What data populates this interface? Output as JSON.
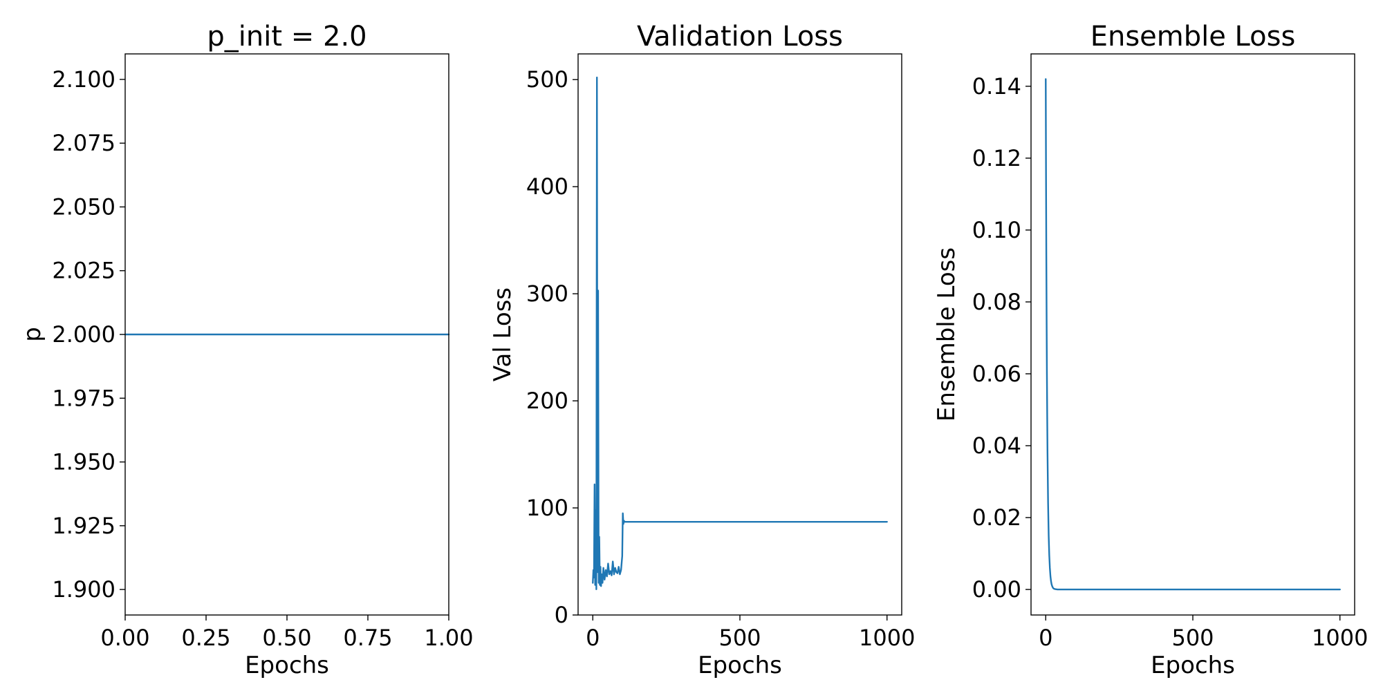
{
  "chart_data": [
    {
      "type": "line",
      "title": "p_init = 2.0",
      "xlabel": "Epochs",
      "ylabel": "p",
      "xlim": [
        0.0,
        1.0
      ],
      "ylim": [
        1.89,
        2.11
      ],
      "xticks": [
        0.0,
        0.25,
        0.5,
        0.75,
        1.0
      ],
      "xtick_labels": [
        "0.00",
        "0.25",
        "0.50",
        "0.75",
        "1.00"
      ],
      "yticks": [
        1.9,
        1.925,
        1.95,
        1.975,
        2.0,
        2.025,
        2.05,
        2.075,
        2.1
      ],
      "ytick_labels": [
        "1.900",
        "1.925",
        "1.950",
        "1.975",
        "2.000",
        "2.025",
        "2.050",
        "2.075",
        "2.100"
      ],
      "grid": false,
      "color": "#1f77b4",
      "series": [
        {
          "x": [
            0.0,
            1.0
          ],
          "y": [
            2.0,
            2.0
          ]
        }
      ]
    },
    {
      "type": "line",
      "title": "Validation Loss",
      "xlabel": "Epochs",
      "ylabel": "Val Loss",
      "xlim": [
        -50,
        1050
      ],
      "ylim": [
        0,
        524
      ],
      "xticks": [
        0,
        500,
        1000
      ],
      "xtick_labels": [
        "0",
        "500",
        "1000"
      ],
      "yticks": [
        0,
        100,
        200,
        300,
        400,
        500
      ],
      "ytick_labels": [
        "0",
        "100",
        "200",
        "300",
        "400",
        "500"
      ],
      "grid": false,
      "color": "#1f77b4",
      "series": [
        {
          "x": [
            0,
            2,
            4,
            6,
            8,
            10,
            12,
            14,
            16,
            18,
            20,
            22,
            24,
            26,
            28,
            30,
            33,
            36,
            40,
            44,
            48,
            52,
            56,
            60,
            64,
            68,
            72,
            76,
            80,
            84,
            88,
            92,
            96,
            100,
            102,
            104,
            106,
            108,
            110,
            150,
            200,
            400,
            600,
            800,
            1000
          ],
          "y": [
            30,
            42,
            35,
            122,
            28,
            98,
            24,
            502,
            40,
            303,
            30,
            73,
            28,
            45,
            27,
            38,
            30,
            44,
            33,
            42,
            36,
            48,
            38,
            41,
            37,
            50,
            38,
            44,
            40,
            39,
            45,
            38,
            42,
            55,
            95,
            85,
            88,
            87,
            87,
            87,
            87,
            87,
            87,
            87,
            87
          ]
        }
      ]
    },
    {
      "type": "line",
      "title": "Ensemble Loss",
      "xlabel": "Epochs",
      "ylabel": "Ensemble Loss",
      "xlim": [
        -50,
        1050
      ],
      "ylim": [
        -0.0071,
        0.149
      ],
      "xticks": [
        0,
        500,
        1000
      ],
      "xtick_labels": [
        "0",
        "500",
        "1000"
      ],
      "yticks": [
        0.0,
        0.02,
        0.04,
        0.06,
        0.08,
        0.1,
        0.12,
        0.14
      ],
      "ytick_labels": [
        "0.00",
        "0.02",
        "0.04",
        "0.06",
        "0.08",
        "0.10",
        "0.12",
        "0.14"
      ],
      "grid": false,
      "color": "#1f77b4",
      "series": [
        {
          "x": [
            0,
            1,
            2,
            3,
            4,
            5,
            6,
            8,
            10,
            12,
            14,
            16,
            18,
            20,
            22,
            25,
            28,
            32,
            40,
            60,
            100,
            300,
            600,
            1000
          ],
          "y": [
            0.142,
            0.115,
            0.093,
            0.075,
            0.06,
            0.048,
            0.038,
            0.024,
            0.015,
            0.0095,
            0.006,
            0.0037,
            0.0023,
            0.0014,
            0.0009,
            0.0004,
            0.0002,
            0.0001,
            0.0,
            0.0,
            0.0,
            0.0,
            0.0,
            0.0
          ]
        }
      ]
    }
  ]
}
